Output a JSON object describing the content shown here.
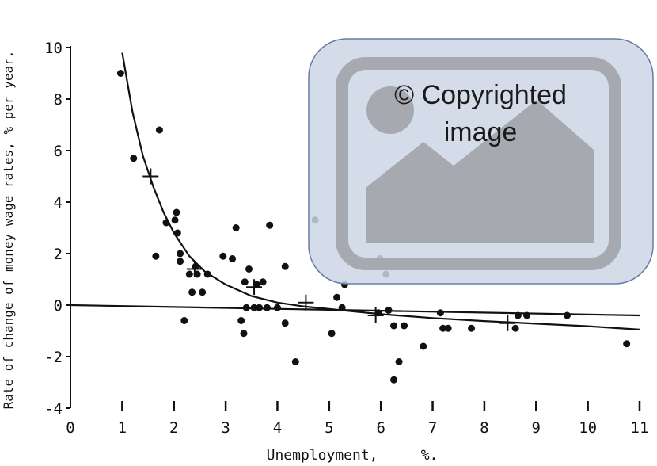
{
  "chart_data": {
    "type": "scatter",
    "xlabel": "Unemployment,     %.",
    "ylabel": "Rate of change of money wage rates, % per year.",
    "xlim": [
      0,
      11
    ],
    "ylim": [
      -4,
      10
    ],
    "x_ticks": [
      "0",
      "1",
      "2",
      "3",
      "4",
      "5",
      "6",
      "7",
      "8",
      "9",
      "10",
      "11"
    ],
    "y_ticks": [
      "10",
      "8",
      "6",
      "4",
      "2",
      "0",
      "-2",
      "-4"
    ],
    "grid": false,
    "series": [
      {
        "kind": "points",
        "marker": "dot",
        "values": [
          [
            0.97,
            9.0
          ],
          [
            1.22,
            5.7
          ],
          [
            1.72,
            6.8
          ],
          [
            1.65,
            1.9
          ],
          [
            1.85,
            3.2
          ],
          [
            2.02,
            3.3
          ],
          [
            2.05,
            3.6
          ],
          [
            2.07,
            2.8
          ],
          [
            2.12,
            1.7
          ],
          [
            2.12,
            2.0
          ],
          [
            2.2,
            -0.6
          ],
          [
            2.3,
            1.2
          ],
          [
            2.35,
            0.5
          ],
          [
            2.42,
            1.5
          ],
          [
            2.45,
            1.2
          ],
          [
            2.55,
            0.5
          ],
          [
            2.65,
            1.2
          ],
          [
            2.95,
            1.9
          ],
          [
            3.13,
            1.8
          ],
          [
            3.2,
            3.0
          ],
          [
            3.3,
            -0.6
          ],
          [
            3.35,
            -1.1
          ],
          [
            3.37,
            0.9
          ],
          [
            3.4,
            -0.1
          ],
          [
            3.45,
            1.4
          ],
          [
            3.55,
            -0.1
          ],
          [
            3.6,
            0.8
          ],
          [
            3.65,
            -0.1
          ],
          [
            3.72,
            0.9
          ],
          [
            3.8,
            -0.1
          ],
          [
            3.85,
            3.1
          ],
          [
            4.0,
            -0.1
          ],
          [
            4.15,
            1.5
          ],
          [
            4.15,
            -0.7
          ],
          [
            4.35,
            -2.2
          ],
          [
            4.73,
            3.3
          ],
          [
            5.05,
            -1.1
          ],
          [
            5.15,
            0.3
          ],
          [
            5.25,
            -0.1
          ],
          [
            5.3,
            0.8
          ],
          [
            5.95,
            -0.3
          ],
          [
            5.98,
            1.8
          ],
          [
            6.1,
            1.2
          ],
          [
            6.15,
            -0.2
          ],
          [
            6.25,
            -0.8
          ],
          [
            6.25,
            -2.9
          ],
          [
            6.35,
            -2.2
          ],
          [
            6.45,
            -0.8
          ],
          [
            6.82,
            -1.6
          ],
          [
            7.15,
            -0.3
          ],
          [
            7.2,
            -0.9
          ],
          [
            7.3,
            -0.9
          ],
          [
            7.75,
            -0.9
          ],
          [
            8.6,
            -0.9
          ],
          [
            8.65,
            -0.4
          ],
          [
            8.82,
            -0.4
          ],
          [
            9.6,
            -0.4
          ],
          [
            10.75,
            -1.5
          ]
        ]
      },
      {
        "kind": "points",
        "marker": "cross",
        "values": [
          [
            1.55,
            5.0
          ],
          [
            2.4,
            1.4
          ],
          [
            3.55,
            0.7
          ],
          [
            4.55,
            0.1
          ],
          [
            5.9,
            -0.4
          ],
          [
            8.45,
            -0.7
          ]
        ]
      },
      {
        "kind": "line",
        "values": [
          [
            1.0,
            9.8
          ],
          [
            1.2,
            7.5
          ],
          [
            1.4,
            5.8
          ],
          [
            1.6,
            4.6
          ],
          [
            1.8,
            3.6
          ],
          [
            2.0,
            2.8
          ],
          [
            2.3,
            1.9
          ],
          [
            2.6,
            1.3
          ],
          [
            3.0,
            0.8
          ],
          [
            3.5,
            0.35
          ],
          [
            4.0,
            0.1
          ],
          [
            4.5,
            -0.05
          ],
          [
            5.0,
            -0.15
          ],
          [
            6.0,
            -0.35
          ],
          [
            7.0,
            -0.5
          ],
          [
            8.0,
            -0.62
          ],
          [
            9.0,
            -0.72
          ],
          [
            10.0,
            -0.82
          ],
          [
            11.0,
            -0.95
          ]
        ]
      },
      {
        "kind": "line",
        "values": [
          [
            0.0,
            0.0
          ],
          [
            11.0,
            -0.4
          ]
        ]
      }
    ]
  },
  "watermark": {
    "line1": "© Copyrighted",
    "line2": "image",
    "box_fill": "#cdd6e6",
    "box_stroke": "#6a7ba6",
    "icon_color": "#a6a9b0"
  }
}
